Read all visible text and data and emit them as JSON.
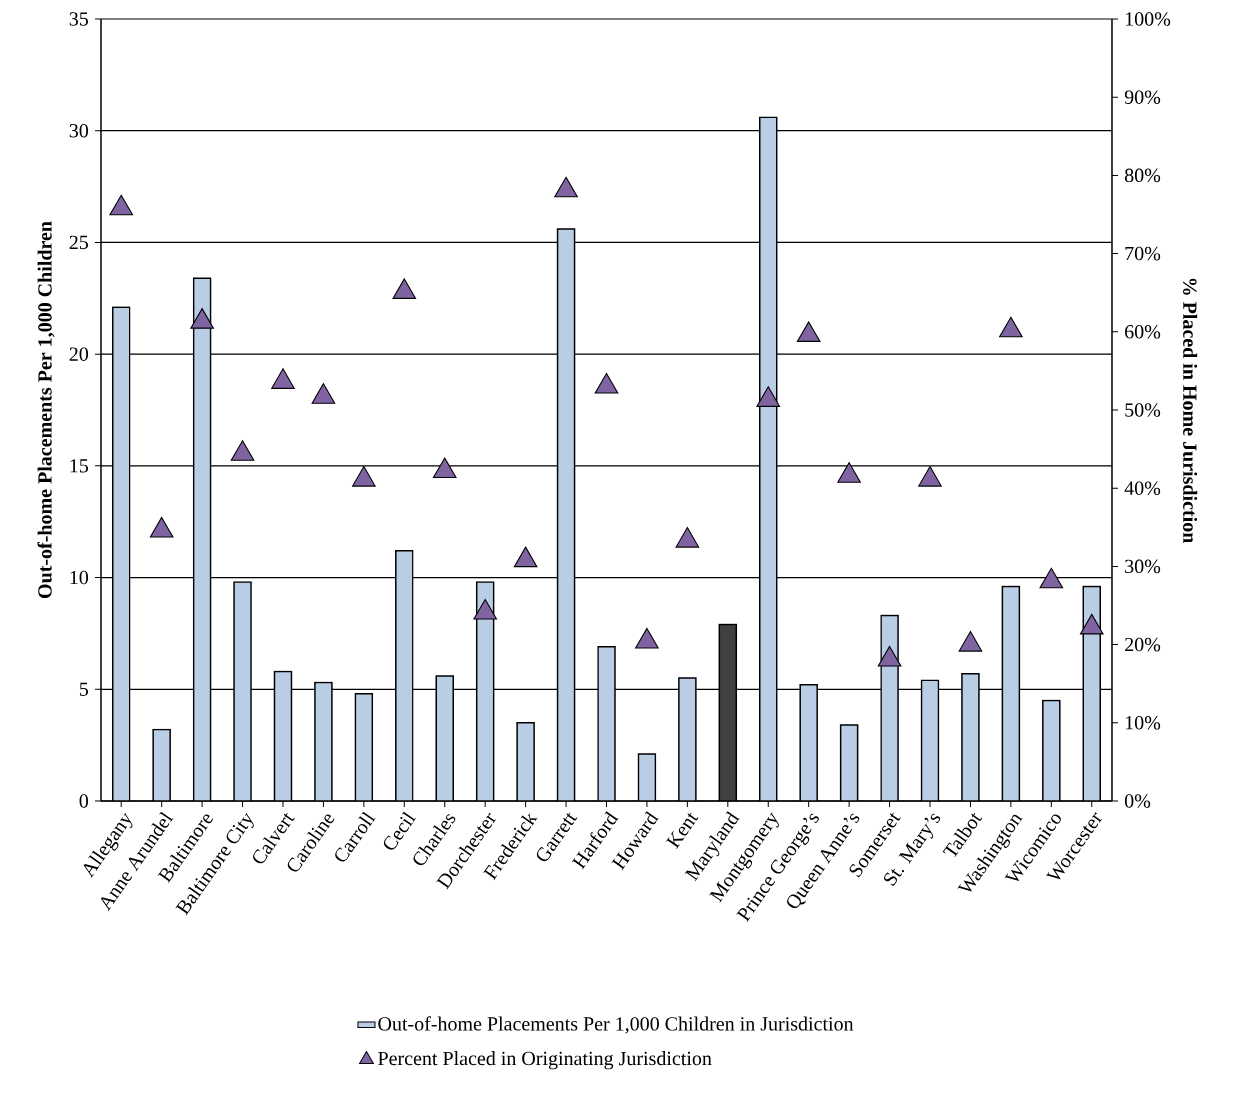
{
  "chart_data": {
    "type": "bar",
    "categories": [
      "Allegany",
      "Anne Arundel",
      "Baltimore",
      "Baltimore City",
      "Calvert",
      "Caroline",
      "Carroll",
      "Cecil",
      "Charles",
      "Dorchester",
      "Frederick",
      "Garrett",
      "Harford",
      "Howard",
      "Kent",
      "Maryland",
      "Montgomery",
      "Prince George’s",
      "Queen Anne’s",
      "Somerset",
      "St. Mary’s",
      "Talbot",
      "Washington",
      "Wicomico",
      "Worcester"
    ],
    "series": [
      {
        "name": "Out-of-home Placements Per 1,000 Children in Jurisdiction",
        "color": "#b9cde5",
        "colors": [
          "#b9cde5",
          "#b9cde5",
          "#b9cde5",
          "#b9cde5",
          "#b9cde5",
          "#b9cde5",
          "#b9cde5",
          "#b9cde5",
          "#b9cde5",
          "#b9cde5",
          "#b9cde5",
          "#b9cde5",
          "#b9cde5",
          "#b9cde5",
          "#b9cde5",
          "#404040",
          "#b9cde5",
          "#b9cde5",
          "#b9cde5",
          "#b9cde5",
          "#b9cde5",
          "#b9cde5",
          "#b9cde5",
          "#b9cde5",
          "#b9cde5"
        ],
        "values": [
          22.1,
          3.2,
          23.4,
          9.8,
          5.8,
          5.3,
          4.8,
          11.2,
          5.6,
          9.8,
          3.5,
          25.6,
          6.9,
          2.1,
          5.5,
          7.9,
          30.6,
          5.2,
          3.4,
          8.3,
          5.4,
          5.7,
          9.6,
          4.5,
          9.6
        ]
      },
      {
        "name": "Percent Placed in Originating Jurisdiction",
        "type": "scatter",
        "axis": "y2",
        "color": "#8064a2",
        "marker": "triangle",
        "values": [
          75.8,
          34.6,
          61.3,
          44.4,
          53.6,
          51.7,
          41.1,
          65.1,
          42.2,
          24.1,
          30.8,
          78.1,
          53.0,
          20.4,
          33.3,
          null,
          51.3,
          59.6,
          41.6,
          18.1,
          41.1,
          20.0,
          60.2,
          28.1,
          22.2
        ]
      }
    ],
    "ylabel": "Out-of-home Placements Per 1,000 Children",
    "y2label": "% Placed in Home Jurisdiction",
    "ylim": [
      0,
      35
    ],
    "yticks": [
      0,
      5,
      10,
      15,
      20,
      25,
      30,
      35
    ],
    "y2lim": [
      0,
      100
    ],
    "y2ticks": [
      {
        "value": 0,
        "label": "0%"
      },
      {
        "value": 10,
        "label": "10%"
      },
      {
        "value": 20,
        "label": "20%"
      },
      {
        "value": 30,
        "label": "30%"
      },
      {
        "value": 40,
        "label": "40%"
      },
      {
        "value": 50,
        "label": "50%"
      },
      {
        "value": 60,
        "label": "60%"
      },
      {
        "value": 70,
        "label": "70%"
      },
      {
        "value": 80,
        "label": "80%"
      },
      {
        "value": 90,
        "label": "90%"
      },
      {
        "value": 100,
        "label": "100%"
      }
    ],
    "grid": "y",
    "legend": "bottom"
  }
}
